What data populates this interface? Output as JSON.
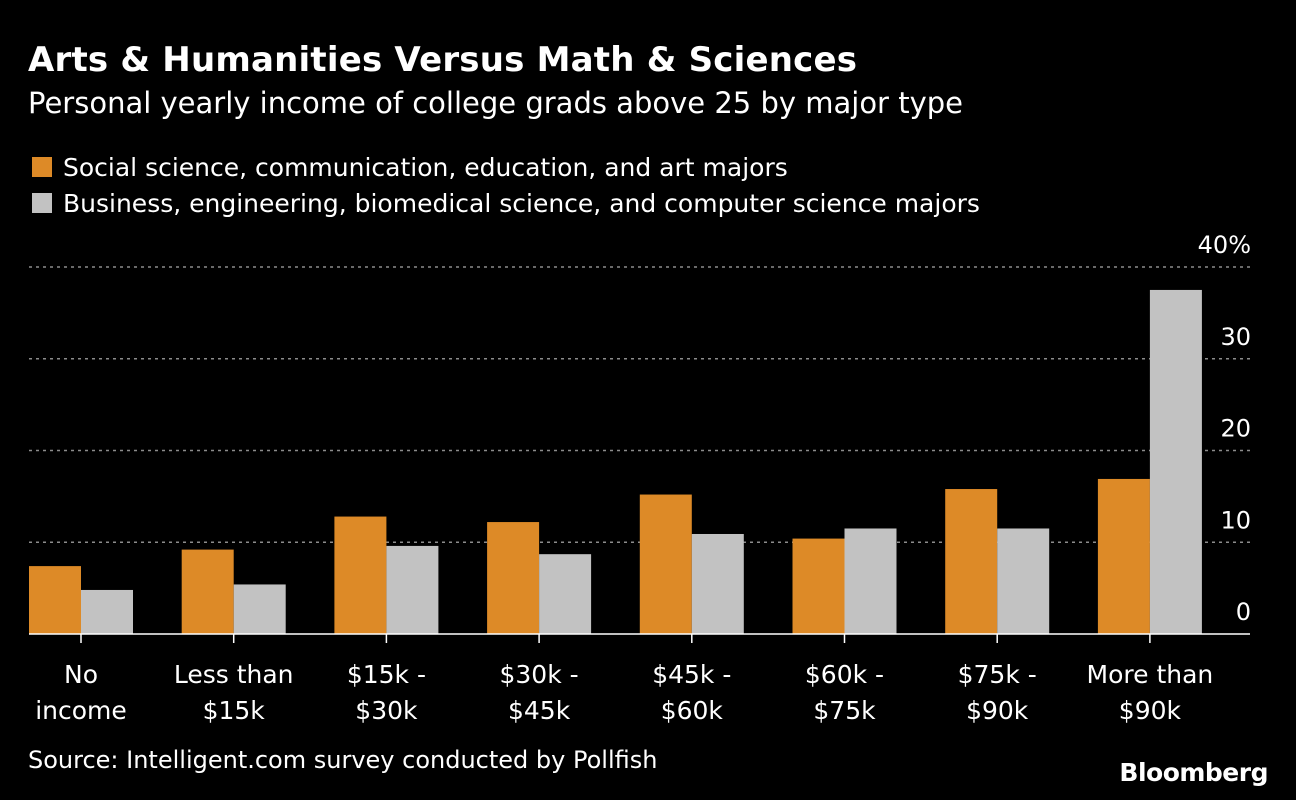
{
  "header": {
    "title": "Arts & Humanities Versus Math & Sciences",
    "subtitle": "Personal yearly income of college grads above 25 by major type"
  },
  "colors": {
    "background": "#000000",
    "series_a": "#dd8a27",
    "series_b": "#c2c2c2",
    "grid": "#8c8c8c",
    "axis": "#ffffff"
  },
  "chart_data": {
    "type": "bar",
    "title": "Arts & Humanities Versus Math & Sciences",
    "subtitle": "Personal yearly income of college grads above 25 by major type",
    "categories": [
      [
        "No",
        "income"
      ],
      [
        "Less than",
        "$15k"
      ],
      [
        "$15k -",
        "$30k"
      ],
      [
        "$30k -",
        "$45k"
      ],
      [
        "$45k -",
        "$60k"
      ],
      [
        "$60k -",
        "$75k"
      ],
      [
        "$75k -",
        "$90k"
      ],
      [
        "More than",
        "$90k"
      ]
    ],
    "series": [
      {
        "name": "Social science, communication, education, and art majors",
        "values": [
          7.4,
          9.2,
          12.8,
          12.2,
          15.2,
          10.4,
          15.8,
          16.9
        ]
      },
      {
        "name": "Business, engineering, biomedical science, and computer science majors",
        "values": [
          4.8,
          5.4,
          9.6,
          8.7,
          10.9,
          11.5,
          11.5,
          37.5
        ]
      }
    ],
    "yticks": [
      "0",
      "10",
      "20",
      "30",
      "40%"
    ],
    "ylim": [
      0,
      40
    ],
    "xlabel": "",
    "ylabel": "",
    "legend": "top-left",
    "grid": true
  },
  "footer": {
    "source": "Source:  Intelligent.com survey conducted by Pollfish",
    "logo": "Bloomberg"
  }
}
